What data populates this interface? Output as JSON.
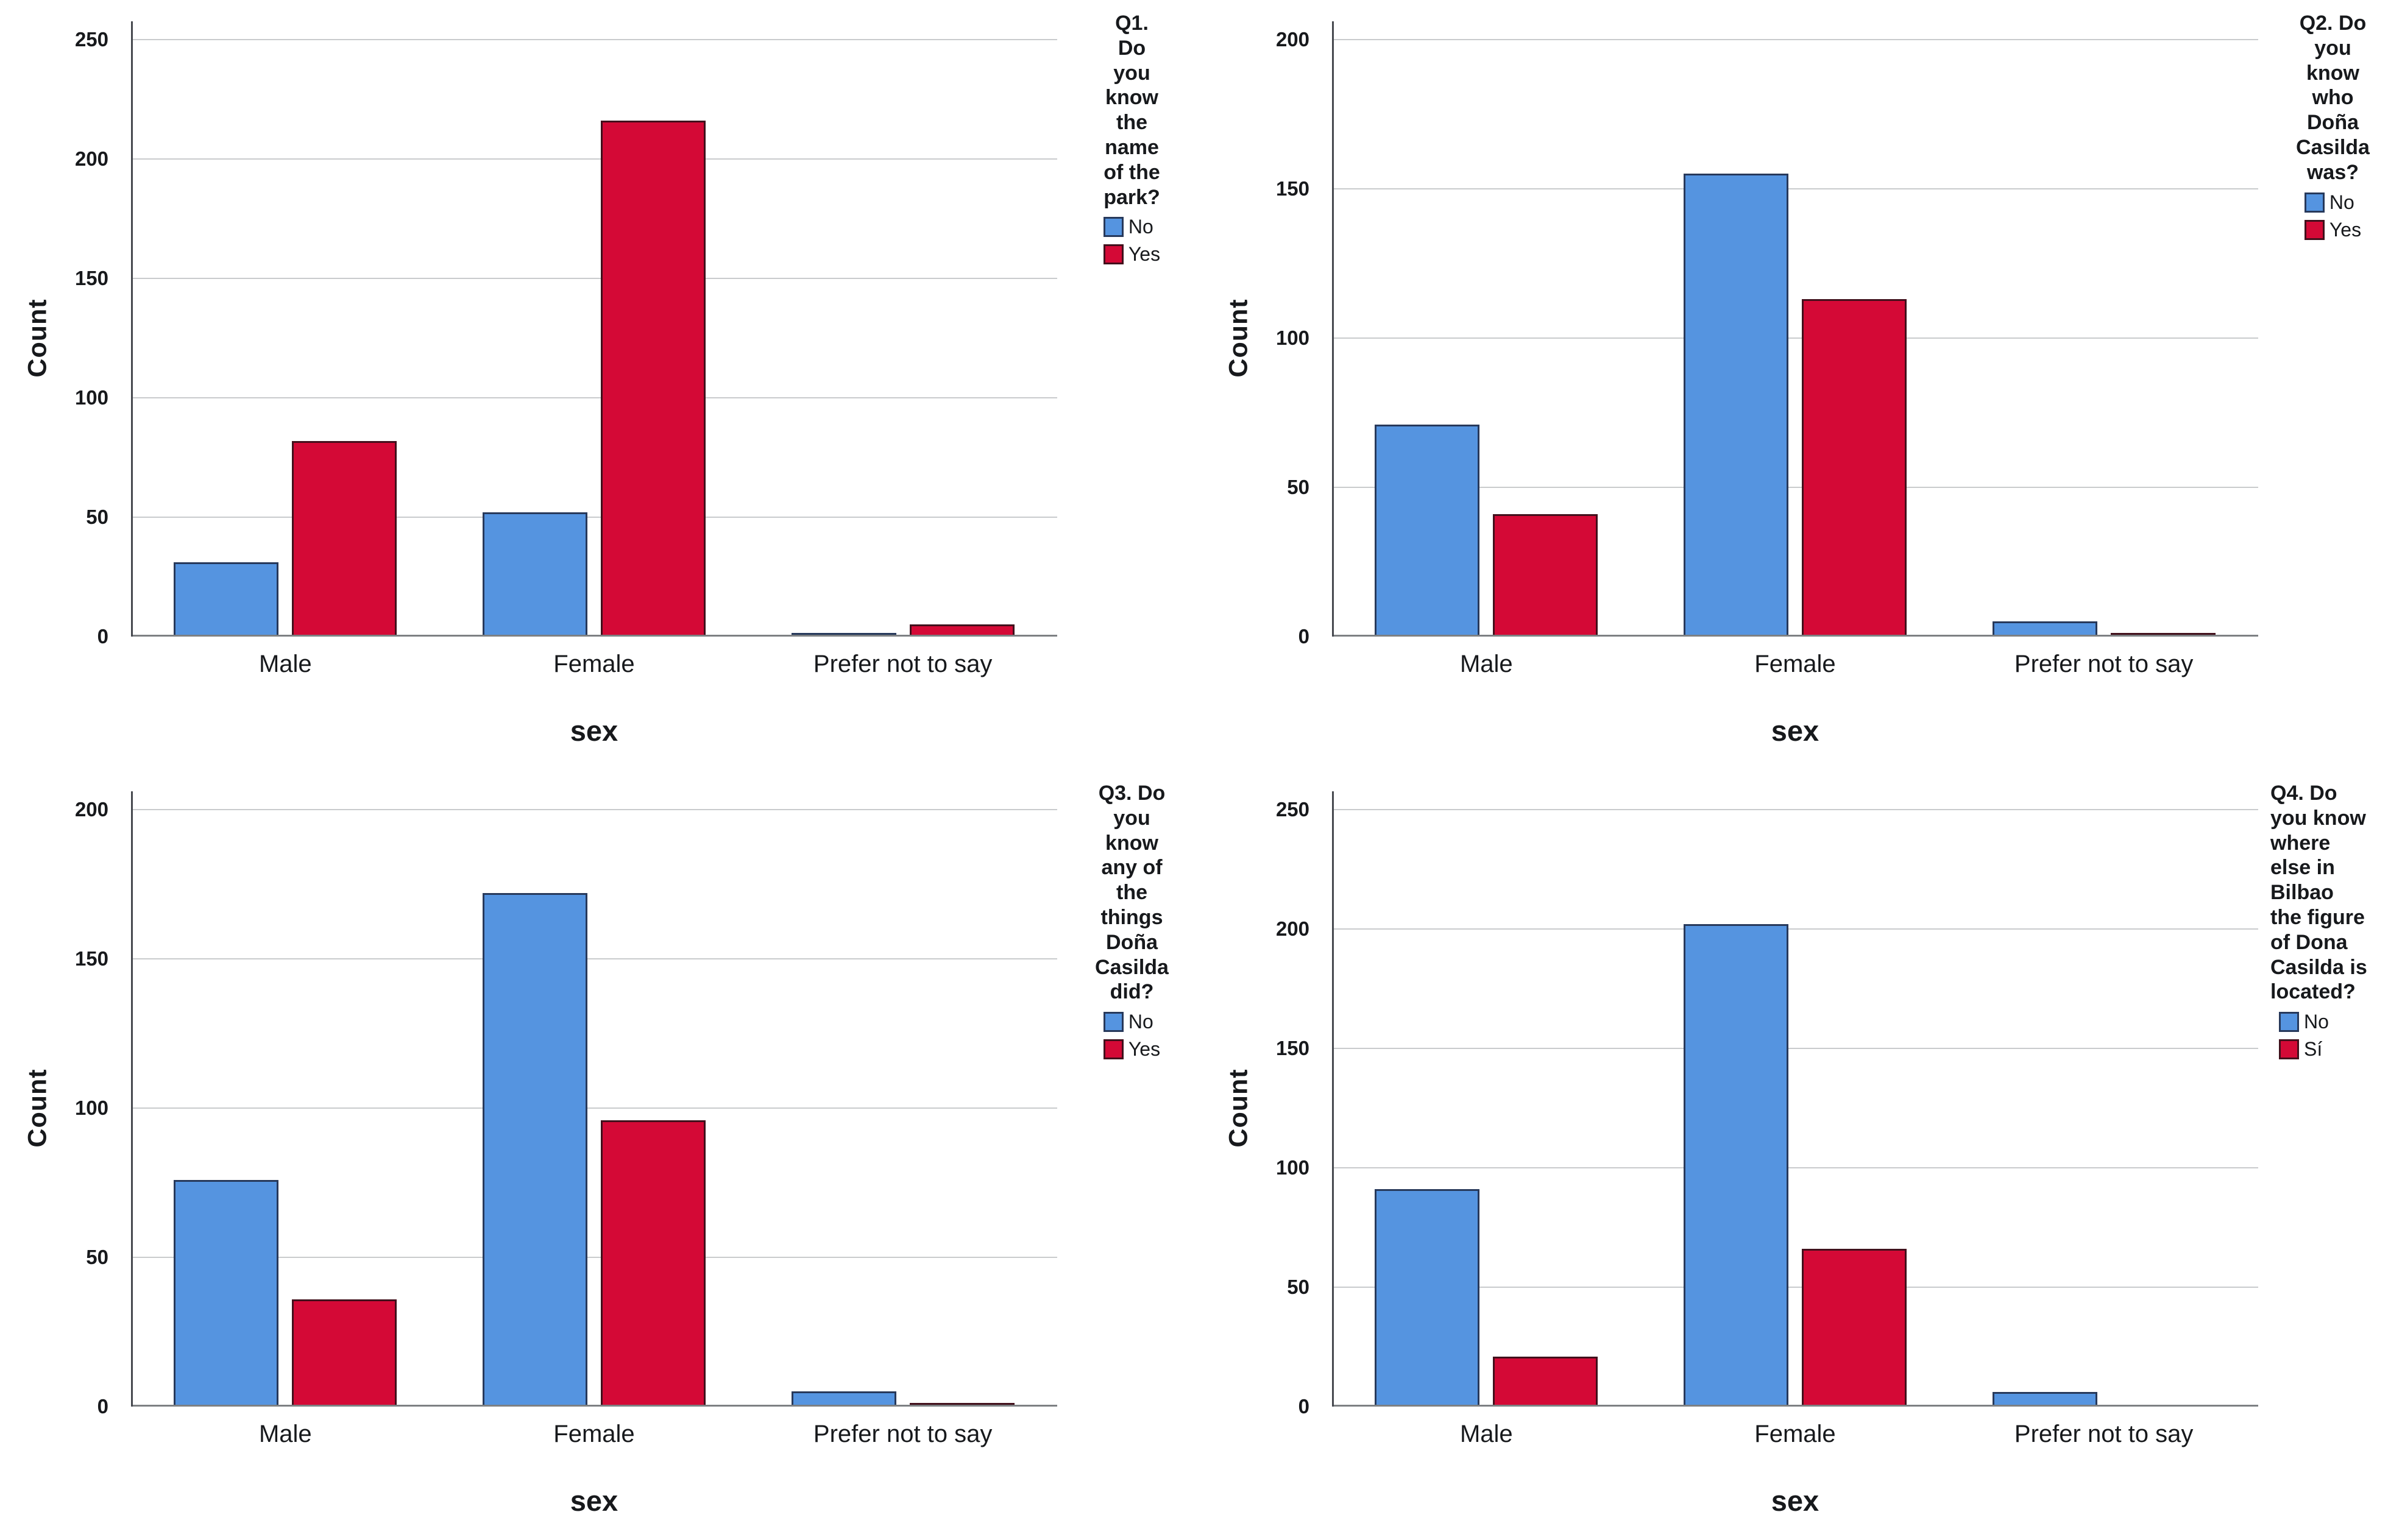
{
  "colors": {
    "background": "#FFFFFF",
    "gridline": "#C9CBCD",
    "x_axis": "#7D8083",
    "y_axis": "#46494F",
    "text": "#17191C",
    "series_no_blue": "#5594E0",
    "series_yes_red": "#D40936"
  },
  "chart_data": [
    {
      "type": "bar",
      "ylabel": "Count",
      "xlabel": "sex",
      "ylim": [
        0,
        250
      ],
      "ytick_step": 50,
      "grid": true,
      "legend_position": "right",
      "legend_title": "Q1.\nDo\nyou\nknow\nthe\nname\nof the\npark?",
      "categories": [
        "Male",
        "Female",
        "Prefer not to say"
      ],
      "series": [
        {
          "name": "No",
          "color": "#5594E0",
          "border": "#27395B",
          "values": [
            31,
            52,
            1
          ]
        },
        {
          "name": "Yes",
          "color": "#D40936",
          "border": "#42101C",
          "values": [
            82,
            216,
            5
          ]
        }
      ]
    },
    {
      "type": "bar",
      "ylabel": "Count",
      "xlabel": "sex",
      "ylim": [
        0,
        200
      ],
      "ytick_step": 50,
      "grid": true,
      "legend_position": "right",
      "legend_title": "Q2. Do\nyou\nknow\nwho\nDoña\nCasilda\nwas?",
      "categories": [
        "Male",
        "Female",
        "Prefer not to say"
      ],
      "series": [
        {
          "name": "No",
          "color": "#5594E0",
          "border": "#27395B",
          "values": [
            71,
            155,
            5
          ]
        },
        {
          "name": "Yes",
          "color": "#D40936",
          "border": "#42101C",
          "values": [
            41,
            113,
            1
          ]
        }
      ]
    },
    {
      "type": "bar",
      "ylabel": "Count",
      "xlabel": "sex",
      "ylim": [
        0,
        200
      ],
      "ytick_step": 50,
      "grid": true,
      "legend_position": "right",
      "legend_title": "Q3. Do\nyou\nknow\nany of\nthe\nthings\nDoña\nCasilda\ndid?",
      "categories": [
        "Male",
        "Female",
        "Prefer not to say"
      ],
      "series": [
        {
          "name": "No",
          "color": "#5594E0",
          "border": "#27395B",
          "values": [
            76,
            172,
            5
          ]
        },
        {
          "name": "Yes",
          "color": "#D40936",
          "border": "#42101C",
          "values": [
            36,
            96,
            1
          ]
        }
      ]
    },
    {
      "type": "bar",
      "ylabel": "Count",
      "xlabel": "sex",
      "ylim": [
        0,
        250
      ],
      "ytick_step": 50,
      "grid": true,
      "legend_position": "right",
      "legend_title": "Q4. Do\nyou know\nwhere\nelse in\nBilbao\nthe figure\nof Dona\nCasilda is\nlocated?",
      "categories": [
        "Male",
        "Female",
        "Prefer not to say"
      ],
      "series": [
        {
          "name": "No",
          "color": "#5594E0",
          "border": "#27395B",
          "values": [
            91,
            202,
            6
          ]
        },
        {
          "name": "Sí",
          "color": "#D40936",
          "border": "#42101C",
          "values": [
            21,
            66,
            0
          ]
        }
      ]
    }
  ]
}
